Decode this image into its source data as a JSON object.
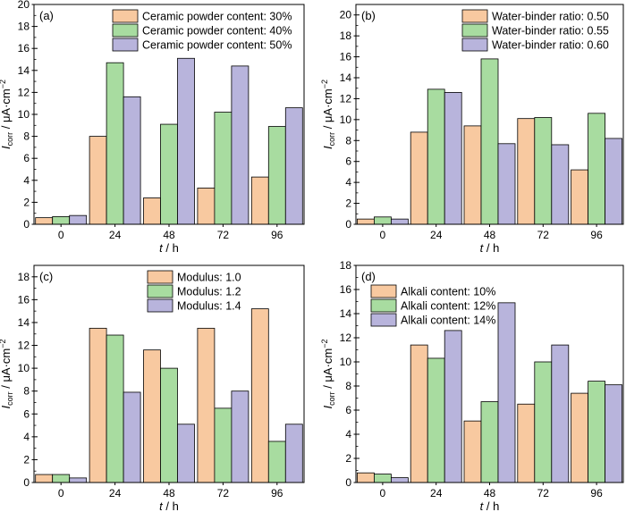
{
  "colors": {
    "series1": "#F8C9A0",
    "series2": "#A8DCA0",
    "series3": "#B8B4DC",
    "edge": "#000000"
  },
  "chart_data": [
    {
      "type": "bar",
      "panel_label": "(a)",
      "categories": [
        "0",
        "24",
        "48",
        "72",
        "96"
      ],
      "series": [
        {
          "name": "Ceramic powder content: 30%",
          "values": [
            0.6,
            8.0,
            2.4,
            3.3,
            4.3
          ]
        },
        {
          "name": "Ceramic powder content: 40%",
          "values": [
            0.7,
            14.7,
            9.1,
            10.2,
            8.9
          ]
        },
        {
          "name": "Ceramic powder content: 50%",
          "values": [
            0.8,
            11.6,
            15.1,
            14.4,
            10.6
          ]
        }
      ],
      "xlabel_var": "t",
      "xlabel_unit": " / h",
      "ylabel_var": "I",
      "ylabel_sub": "corr",
      "ylabel_unit": " / μA·cm",
      "ylabel_sup": "−2",
      "yticks": [
        "0",
        "2",
        "4",
        "6",
        "8",
        "10",
        "12",
        "14",
        "16",
        "18",
        "20"
      ],
      "ylim": [
        0,
        20
      ],
      "legend_position": "top-right"
    },
    {
      "type": "bar",
      "panel_label": "(b)",
      "categories": [
        "0",
        "24",
        "48",
        "72",
        "96"
      ],
      "series": [
        {
          "name": "Water-binder ratio: 0.50",
          "values": [
            0.5,
            8.8,
            9.4,
            10.1,
            5.2
          ]
        },
        {
          "name": "Water-binder ratio: 0.55",
          "values": [
            0.7,
            12.9,
            15.8,
            10.2,
            10.6
          ]
        },
        {
          "name": "Water-binder ratio: 0.60",
          "values": [
            0.5,
            12.6,
            7.7,
            7.6,
            8.2
          ]
        }
      ],
      "xlabel_var": "t",
      "xlabel_unit": " / h",
      "ylabel_var": "I",
      "ylabel_sub": "corr",
      "ylabel_unit": " / μA·cm",
      "ylabel_sup": "−2",
      "yticks": [
        "0",
        "2",
        "4",
        "6",
        "8",
        "10",
        "12",
        "14",
        "16",
        "18",
        "20"
      ],
      "ylim": [
        0,
        21
      ],
      "legend_position": "top-right"
    },
    {
      "type": "bar",
      "panel_label": "(c)",
      "categories": [
        "0",
        "24",
        "48",
        "72",
        "96"
      ],
      "series": [
        {
          "name": "Modulus: 1.0",
          "values": [
            0.7,
            13.5,
            11.6,
            13.5,
            15.2
          ]
        },
        {
          "name": "Modulus: 1.2",
          "values": [
            0.7,
            12.9,
            10.0,
            6.5,
            3.6
          ]
        },
        {
          "name": "Modulus: 1.4",
          "values": [
            0.4,
            7.9,
            5.1,
            8.0,
            5.1
          ]
        }
      ],
      "xlabel_var": "t",
      "xlabel_unit": " / h",
      "ylabel_var": "I",
      "ylabel_sub": "corr",
      "ylabel_unit": " / μA·cm",
      "ylabel_sup": "−2",
      "yticks": [
        "0",
        "2",
        "4",
        "6",
        "8",
        "10",
        "12",
        "14",
        "16",
        "18"
      ],
      "ylim": [
        0,
        19
      ],
      "legend_position": "top-center"
    },
    {
      "type": "bar",
      "panel_label": "(d)",
      "categories": [
        "0",
        "24",
        "48",
        "72",
        "96"
      ],
      "series": [
        {
          "name": "Alkali content: 10%",
          "values": [
            0.8,
            11.4,
            5.1,
            6.5,
            7.4
          ]
        },
        {
          "name": "Alkali content: 12%",
          "values": [
            0.7,
            10.3,
            6.7,
            10.0,
            8.4
          ]
        },
        {
          "name": "Alkali content: 14%",
          "values": [
            0.4,
            12.6,
            14.9,
            11.4,
            8.1
          ]
        }
      ],
      "xlabel_var": "t",
      "xlabel_unit": " / h",
      "ylabel_var": "I",
      "ylabel_sub": "corr",
      "ylabel_unit": " / μA·cm",
      "ylabel_sup": "−2",
      "yticks": [
        "0",
        "2",
        "4",
        "6",
        "8",
        "10",
        "12",
        "14",
        "16",
        "18"
      ],
      "ylim": [
        0,
        18
      ],
      "legend_position": "top-left"
    }
  ]
}
